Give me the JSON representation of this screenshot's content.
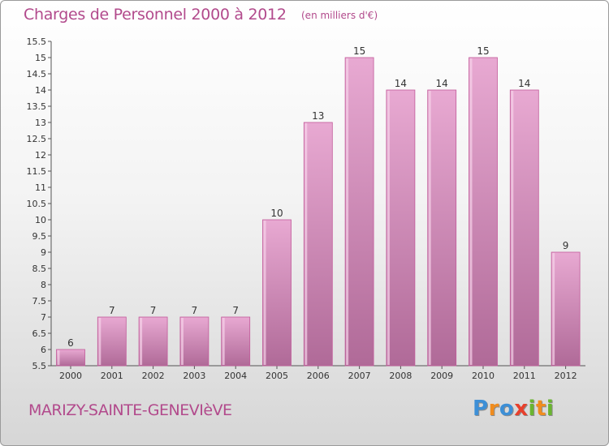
{
  "chart_data": {
    "type": "bar",
    "title": "Charges de Personnel 2000 à 2012",
    "subtitle": "(en milliers d'€)",
    "categories": [
      "2000",
      "2001",
      "2002",
      "2003",
      "2004",
      "2005",
      "2006",
      "2007",
      "2008",
      "2009",
      "2010",
      "2011",
      "2012"
    ],
    "values": [
      6,
      7,
      7,
      7,
      7,
      10,
      13,
      15,
      14,
      14,
      15,
      14,
      9
    ],
    "value_labels": [
      "6",
      "7",
      "7",
      "7",
      "7",
      "10",
      "13",
      "15",
      "14",
      "14",
      "15",
      "14",
      "9"
    ],
    "ylim": [
      5.5,
      15.5
    ],
    "yticks": [
      5.5,
      6,
      6.5,
      7,
      7.5,
      8,
      8.5,
      9,
      9.5,
      10,
      10.5,
      11,
      11.5,
      12,
      12.5,
      13,
      13.5,
      14,
      14.5,
      15,
      15.5
    ],
    "ytick_labels": [
      "5.5",
      "6",
      "6.5",
      "7",
      "7.5",
      "8",
      "8.5",
      "9",
      "9.5",
      "10",
      "10.5",
      "11",
      "11.5",
      "12",
      "12.5",
      "13",
      "13.5",
      "14",
      "14.5",
      "15",
      "15.5"
    ],
    "grid": false,
    "colors": {
      "bar_light": "#e8a9d2",
      "bar_dark": "#b06a98",
      "bar_edge": "#c25a9a",
      "text_accent": "#b24a8c"
    }
  },
  "footer": {
    "town": "MARIZY-SAINTE-GENEVIèVE"
  },
  "logo": {
    "letters": [
      {
        "ch": "P",
        "color": "#3d8fd6"
      },
      {
        "ch": "r",
        "color": "#f08c1e"
      },
      {
        "ch": "o",
        "color": "#3d8fd6"
      },
      {
        "ch": "x",
        "color": "#e8402c"
      },
      {
        "ch": "i",
        "color": "#6ab530"
      },
      {
        "ch": "t",
        "color": "#f08c1e"
      },
      {
        "ch": "i",
        "color": "#6ab530"
      }
    ]
  }
}
